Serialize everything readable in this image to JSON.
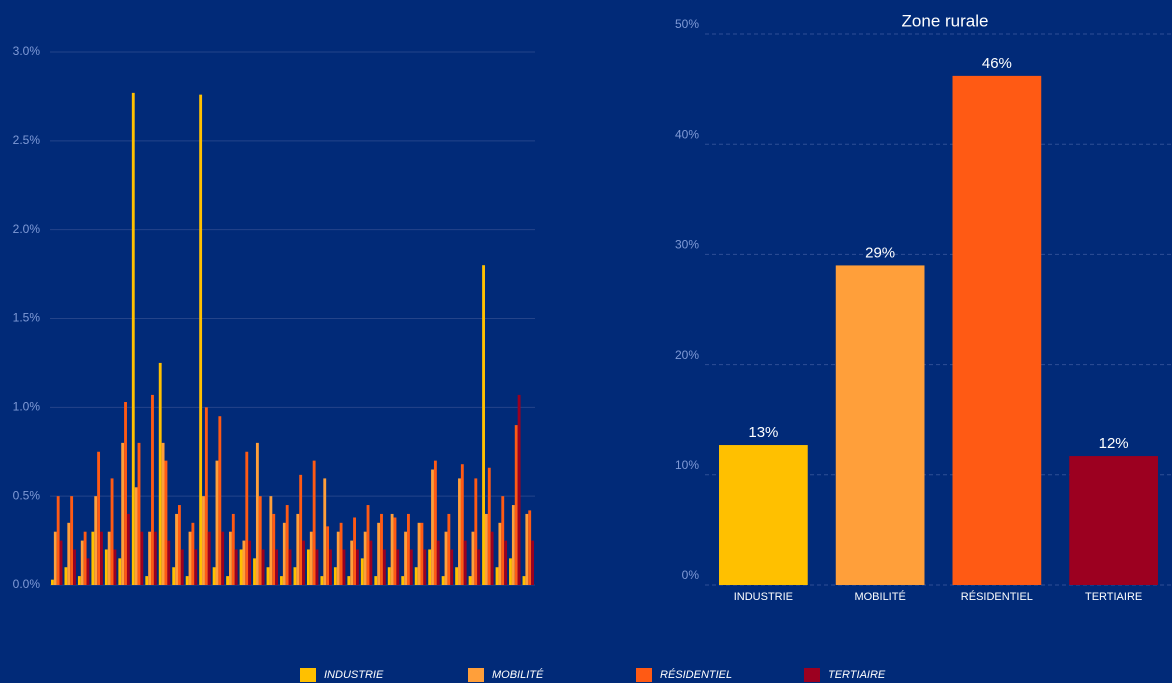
{
  "chart_data": [
    {
      "type": "bar",
      "categories": [
        null,
        null,
        null,
        null,
        null,
        null,
        null,
        null,
        null,
        null,
        null,
        null,
        null,
        null,
        null,
        null,
        null,
        null,
        null,
        null,
        null,
        null,
        null,
        null,
        null,
        null,
        null,
        null,
        null,
        null,
        null,
        null,
        null,
        null,
        null,
        null
      ],
      "series": [
        {
          "name": "INDUSTRIE",
          "color": "#ffc000",
          "values": [
            0.03,
            0.1,
            0.05,
            0.3,
            0.2,
            0.15,
            2.77,
            0.05,
            1.25,
            0.1,
            0.05,
            2.76,
            0.1,
            0.05,
            0.2,
            0.15,
            0.1,
            0.05,
            0.1,
            0.2,
            0.05,
            0.1,
            0.05,
            0.15,
            0.05,
            0.1,
            0.05,
            0.1,
            0.2,
            0.05,
            0.1,
            0.05,
            1.8,
            0.1,
            0.15,
            0.05
          ]
        },
        {
          "name": "MOBILITÉ",
          "color": "#ff9f3a",
          "values": [
            0.3,
            0.35,
            0.25,
            0.5,
            0.3,
            0.8,
            0.55,
            0.3,
            0.8,
            0.4,
            0.3,
            0.5,
            0.7,
            0.3,
            0.25,
            0.8,
            0.5,
            0.35,
            0.4,
            0.3,
            0.6,
            0.3,
            0.25,
            0.3,
            0.35,
            0.4,
            0.3,
            0.35,
            0.65,
            0.3,
            0.6,
            0.3,
            0.4,
            0.35,
            0.45,
            0.4
          ]
        },
        {
          "name": "RÉSIDENTIEL",
          "color": "#ff5a14",
          "values": [
            0.5,
            0.5,
            0.3,
            0.75,
            0.6,
            1.03,
            0.8,
            1.07,
            0.7,
            0.45,
            0.35,
            1.0,
            0.95,
            0.4,
            0.75,
            0.5,
            0.4,
            0.45,
            0.62,
            0.7,
            0.33,
            0.35,
            0.38,
            0.45,
            0.4,
            0.38,
            0.4,
            0.35,
            0.7,
            0.4,
            0.68,
            0.6,
            0.66,
            0.5,
            0.9,
            0.42
          ]
        },
        {
          "name": "TERTIAIRE",
          "color": "#9c0020",
          "values": [
            0.25,
            0.2,
            0.15,
            0.3,
            0.2,
            0.4,
            0.3,
            0.3,
            0.25,
            0.2,
            0.2,
            0.3,
            0.3,
            0.2,
            0.25,
            0.2,
            0.2,
            0.2,
            0.25,
            0.2,
            0.2,
            0.2,
            0.2,
            0.25,
            0.2,
            0.2,
            0.2,
            0.2,
            0.25,
            0.2,
            0.25,
            0.2,
            0.3,
            0.25,
            1.07,
            0.25
          ]
        }
      ],
      "ylim": [
        0,
        3.0
      ],
      "yticks": [
        {
          "value": 0,
          "label": "0.0%"
        },
        {
          "value": 0.5,
          "label": "0.5%"
        },
        {
          "value": 1.0,
          "label": "1.0%"
        },
        {
          "value": 1.5,
          "label": "1.5%"
        },
        {
          "value": 2.0,
          "label": "2.0%"
        },
        {
          "value": 2.5,
          "label": "2.5%"
        },
        {
          "value": 3.0,
          "label": "3.0%"
        }
      ],
      "grid": true,
      "legend": "bottom"
    },
    {
      "type": "bar",
      "title": "Zone rurale",
      "categories": [
        "INDUSTRIE",
        "MOBILITÉ",
        "RÉSIDENTIEL",
        "TERTIAIRE"
      ],
      "values": [
        12.7,
        29,
        46.2,
        11.7
      ],
      "value_labels": [
        "13%",
        "29%",
        "46%",
        "12%"
      ],
      "colors": [
        "#ffc000",
        "#ff9f3a",
        "#ff5a14",
        "#9c0020"
      ],
      "ylim": [
        0,
        50
      ],
      "yticks": [
        {
          "value": 0,
          "label": "0%"
        },
        {
          "value": 10,
          "label": "10%"
        },
        {
          "value": 20,
          "label": "20%"
        },
        {
          "value": 30,
          "label": "30%"
        },
        {
          "value": 40,
          "label": "40%"
        },
        {
          "value": 50,
          "label": "50%"
        }
      ],
      "grid": true
    }
  ]
}
